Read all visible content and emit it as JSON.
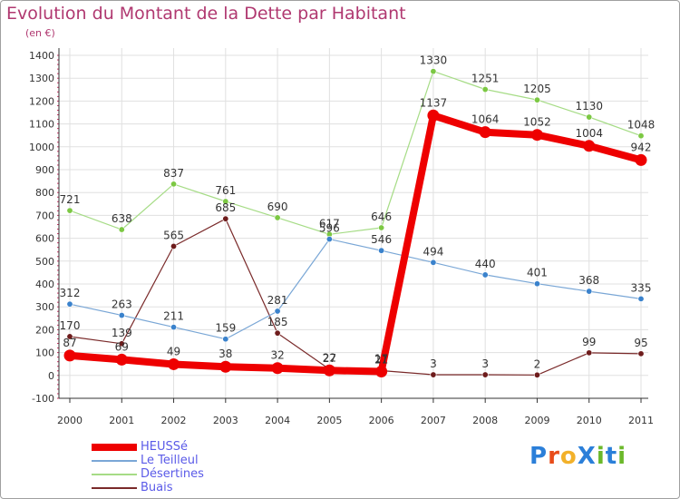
{
  "colors": {
    "title": "#b03870",
    "axis": "#333333",
    "grid": "#e0e0e0",
    "legend_text": "#5a5ae8",
    "background": "#ffffff"
  },
  "brand": {
    "text": "ProXiti",
    "letter_colors": [
      "#2b7fd9",
      "#e84c1a",
      "#f2b12a",
      "#2b7fd9",
      "#6bb82a",
      "#2b7fd9",
      "#6bb82a"
    ]
  },
  "chart_data": {
    "type": "line",
    "title": "Evolution du Montant de la Dette par Habitant",
    "subtitle": "(en €)",
    "xlabel": "",
    "ylabel": "",
    "x": [
      "2000",
      "2001",
      "2002",
      "2003",
      "2004",
      "2005",
      "2006",
      "2007",
      "2008",
      "2009",
      "2010",
      "2011"
    ],
    "ylim": [
      -100,
      1400
    ],
    "yticks": [
      -100,
      0,
      100,
      200,
      300,
      400,
      500,
      600,
      700,
      800,
      900,
      1000,
      1100,
      1200,
      1300,
      1400
    ],
    "ytick_labels": [
      "-100",
      "0",
      "100",
      "200",
      "300",
      "400",
      "500",
      "600",
      "700",
      "800",
      "900",
      "1000",
      "1100",
      "1200",
      "1300",
      "1400"
    ],
    "grid": true,
    "legend_position": "bottom-left",
    "series": [
      {
        "name": "HEUSSé",
        "values": [
          87,
          69,
          49,
          38,
          32,
          22,
          17,
          1137,
          1064,
          1052,
          1004,
          942
        ],
        "labels": [
          "87",
          "69",
          "49",
          "38",
          "32",
          "22",
          "17",
          "1137",
          "1064",
          "1052",
          "1004",
          "942"
        ],
        "color": "#ee0000",
        "marker_color": "#ee0000"
      },
      {
        "name": "Le Teilleul",
        "values": [
          312,
          263,
          211,
          159,
          281,
          596,
          546,
          494,
          440,
          401,
          368,
          335
        ],
        "labels": [
          "312",
          "263",
          "211",
          "159",
          "281",
          "596",
          "546",
          "494",
          "440",
          "401",
          "368",
          "335"
        ],
        "color": "#7aa7d6",
        "marker_color": "#3a82cc"
      },
      {
        "name": "Désertines",
        "values": [
          721,
          638,
          837,
          761,
          690,
          617,
          646,
          1330,
          1251,
          1205,
          1130,
          1048
        ],
        "labels": [
          "721",
          "638",
          "837",
          "761",
          "690",
          "617",
          "646",
          "1330",
          "1251",
          "1205",
          "1130",
          "1048"
        ],
        "color": "#a6dc86",
        "marker_color": "#7cc843"
      },
      {
        "name": "Buais",
        "values": [
          170,
          139,
          565,
          685,
          185,
          27,
          21,
          3,
          3,
          2,
          99,
          95
        ],
        "labels": [
          "170",
          "139",
          "565",
          "685",
          "185",
          "27",
          "21",
          "3",
          "3",
          "2",
          "99",
          "95"
        ],
        "color": "#7a2a2a",
        "marker_color": "#6e1c1c"
      }
    ]
  }
}
